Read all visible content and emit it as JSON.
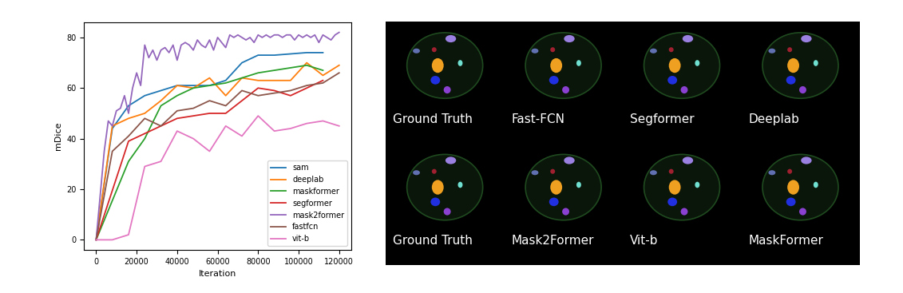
{
  "chart_data": {
    "type": "line",
    "x_label": "Iteration",
    "y_label": "mDice",
    "xlim": [
      -6000,
      126000
    ],
    "xticks": [
      0,
      20000,
      40000,
      60000,
      80000,
      100000,
      120000
    ],
    "ylim": [
      -4,
      86
    ],
    "yticks": [
      0,
      20,
      40,
      60,
      80
    ],
    "grid": false,
    "legend": "lower right",
    "series": [
      {
        "name": "sam",
        "color": "#1f77b4",
        "x": [
          0,
          8000,
          16000,
          24000,
          32000,
          40000,
          48000,
          56000,
          64000,
          72000,
          80000,
          88000,
          96000,
          104000,
          112000
        ],
        "values": [
          0,
          44,
          53,
          57,
          59,
          61,
          61,
          61,
          63,
          70,
          73,
          73,
          73.5,
          74,
          74
        ]
      },
      {
        "name": "deeplab",
        "color": "#ff7f0e",
        "x": [
          0,
          8000,
          16000,
          24000,
          32000,
          40000,
          48000,
          56000,
          64000,
          72000,
          80000,
          88000,
          96000,
          104000,
          112000,
          120000
        ],
        "values": [
          0,
          45,
          48,
          50,
          55,
          61,
          60,
          64,
          57,
          64,
          63,
          63,
          63,
          70,
          65,
          69
        ]
      },
      {
        "name": "maskformer",
        "color": "#2ca02c",
        "x": [
          0,
          16000,
          24000,
          32000,
          40000,
          48000,
          56000,
          64000,
          72000,
          80000,
          88000,
          96000,
          104000,
          112000
        ],
        "values": [
          0,
          31,
          40,
          53,
          57,
          60,
          61,
          62,
          64,
          66,
          67,
          68,
          69,
          67
        ]
      },
      {
        "name": "segformer",
        "color": "#d62728",
        "x": [
          0,
          16000,
          24000,
          32000,
          40000,
          48000,
          56000,
          64000,
          72000,
          80000,
          88000,
          96000,
          104000,
          112000
        ],
        "values": [
          0,
          39,
          42,
          45,
          48,
          49,
          50,
          50,
          55,
          60,
          59,
          57,
          60,
          63
        ]
      },
      {
        "name": "mask2former",
        "color": "#9467bd",
        "x": [
          0,
          4000,
          6000,
          8000,
          10000,
          12000,
          14000,
          16000,
          18000,
          20000,
          22000,
          24000,
          26000,
          28000,
          30000,
          32000,
          34000,
          36000,
          38000,
          40000,
          42000,
          44000,
          46000,
          48000,
          50000,
          52000,
          54000,
          56000,
          58000,
          60000,
          62000,
          64000,
          66000,
          68000,
          70000,
          72000,
          74000,
          76000,
          78000,
          80000,
          82000,
          84000,
          86000,
          88000,
          90000,
          92000,
          94000,
          96000,
          98000,
          100000,
          102000,
          104000,
          106000,
          108000,
          110000,
          112000,
          114000,
          116000,
          118000,
          120000
        ],
        "values": [
          0,
          35,
          47,
          45,
          51,
          52,
          57,
          50,
          60,
          66,
          61,
          77,
          72,
          75,
          71,
          75,
          76,
          74,
          77,
          71,
          77,
          78,
          77,
          75,
          79,
          77,
          76,
          79,
          75,
          80,
          78,
          76,
          81,
          80,
          81,
          80,
          79,
          80,
          78,
          81,
          80,
          81,
          80,
          81,
          81,
          80,
          81,
          81,
          79,
          81,
          80,
          81,
          80,
          81,
          78,
          81,
          80,
          79,
          81,
          82
        ]
      },
      {
        "name": "fastfcn",
        "color": "#8c564b",
        "x": [
          0,
          8000,
          16000,
          24000,
          32000,
          40000,
          48000,
          56000,
          64000,
          72000,
          80000,
          88000,
          96000,
          104000,
          112000,
          120000
        ],
        "values": [
          0,
          35,
          41,
          48,
          45,
          51,
          52,
          55,
          53,
          59,
          57,
          58,
          59,
          61,
          62,
          66
        ]
      },
      {
        "name": "vit-b",
        "color": "#e377c2",
        "x": [
          0,
          8000,
          16000,
          24000,
          32000,
          40000,
          48000,
          56000,
          64000,
          72000,
          80000,
          88000,
          96000,
          104000,
          112000,
          120000
        ],
        "values": [
          0,
          0,
          2,
          29,
          31,
          43,
          40,
          35,
          45,
          41,
          49,
          43,
          44,
          46,
          47,
          45
        ]
      }
    ]
  },
  "image_grid": {
    "labels": [
      [
        "Ground Truth",
        "Fast-FCN",
        "Segformer",
        "Deeplab"
      ],
      [
        "Ground Truth",
        "Mask2Former",
        "Vit-b",
        "MaskFormer"
      ]
    ]
  }
}
